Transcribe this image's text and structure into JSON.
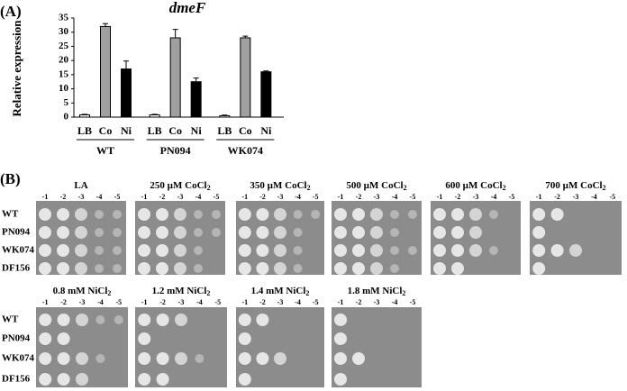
{
  "chart_data": {
    "type": "bar",
    "panel_label": "(A)",
    "title": "dmeF",
    "y_label": "Relative expression",
    "categories": [
      "LB",
      "Co",
      "Ni"
    ],
    "colors": [
      "#ffffff",
      "#a0a0a0",
      "#000000"
    ],
    "series": [
      {
        "name": "WT",
        "values": [
          0.8,
          32,
          17
        ],
        "errors": [
          0.2,
          1,
          2.8
        ]
      },
      {
        "name": "PN094",
        "values": [
          0.8,
          28,
          12.5
        ],
        "errors": [
          0.2,
          3,
          1.3
        ]
      },
      {
        "name": "WK074",
        "values": [
          0.5,
          28,
          16
        ],
        "errors": [
          0.2,
          0.6,
          0.3
        ]
      }
    ],
    "ylim": [
      0,
      35
    ],
    "yticks": [
      0,
      5,
      10,
      15,
      20,
      25,
      30,
      35
    ]
  },
  "panel_b": {
    "label": "(B)",
    "strains": [
      "WT",
      "PN094",
      "WK074",
      "DF156"
    ],
    "dilutions": [
      "-1",
      "-2",
      "-3",
      "-4",
      "-5"
    ],
    "plates": [
      {
        "text": "LA"
      },
      {
        "text": "250 µM CoCl",
        "subscript": "2"
      },
      {
        "text": "350 µM CoCl",
        "subscript": "2"
      },
      {
        "text": "500 µM CoCl",
        "subscript": "2"
      },
      {
        "text": "600 µM CoCl",
        "subscript": "2"
      },
      {
        "text": "700 µM CoCl",
        "subscript": "2"
      },
      {
        "text": "0.8 mM NiCl",
        "subscript": "2"
      },
      {
        "text": "1.2 mM NiCl",
        "subscript": "2"
      },
      {
        "text": "1.4 mM NiCl",
        "subscript": "2"
      },
      {
        "text": "1.8 mM NiCl",
        "subscript": "2"
      }
    ]
  }
}
